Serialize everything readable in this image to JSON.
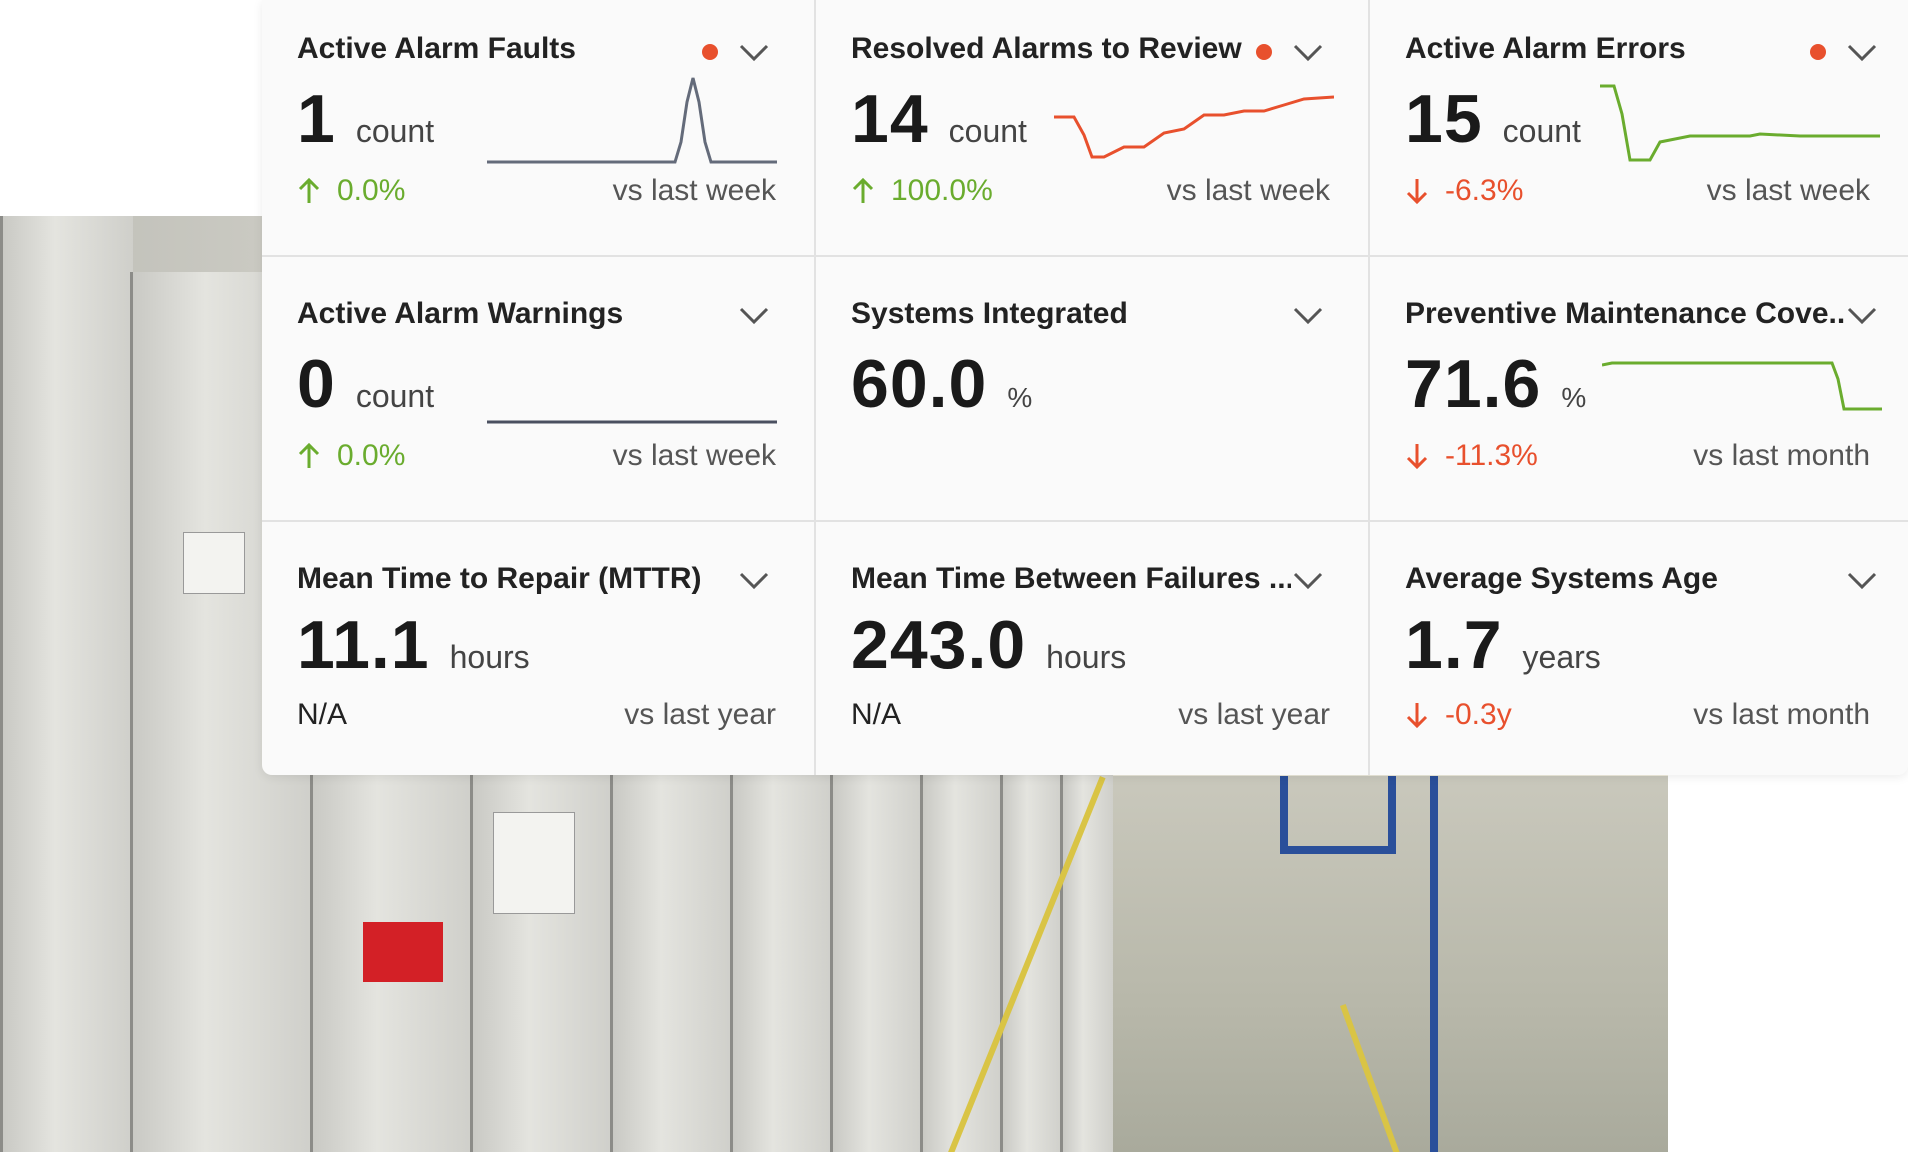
{
  "cards": [
    {
      "title": "Active Alarm Faults",
      "value": "1",
      "unit": "count",
      "change": "0.0%",
      "direction": "up",
      "comparison": "vs last week",
      "alert": true
    },
    {
      "title": "Resolved Alarms to Review",
      "value": "14",
      "unit": "count",
      "change": "100.0%",
      "direction": "up",
      "comparison": "vs last week",
      "alert": true
    },
    {
      "title": "Active Alarm Errors",
      "value": "15",
      "unit": "count",
      "change": "-6.3%",
      "direction": "down",
      "comparison": "vs last week",
      "alert": true
    },
    {
      "title": "Active Alarm Warnings",
      "value": "0",
      "unit": "count",
      "change": "0.0%",
      "direction": "up",
      "comparison": "vs last week",
      "alert": false
    },
    {
      "title": "Systems Integrated",
      "value": "60.0",
      "unit": "%",
      "alert": false
    },
    {
      "title": "Preventive Maintenance Cove...",
      "value": "71.6",
      "unit": "%",
      "change": "-11.3%",
      "direction": "down",
      "comparison": "vs last month",
      "alert": false
    },
    {
      "title": "Mean Time to Repair (MTTR)",
      "value": "11.1",
      "unit": "hours",
      "change": "N/A",
      "direction": "none",
      "comparison": "vs last year",
      "alert": false
    },
    {
      "title": "Mean Time Between Failures ...",
      "value": "243.0",
      "unit": "hours",
      "change": "N/A",
      "direction": "none",
      "comparison": "vs last year",
      "alert": false
    },
    {
      "title": "Average Systems Age",
      "value": "1.7",
      "unit": "years",
      "change": "-0.3y",
      "direction": "down",
      "comparison": "vs last month",
      "alert": false
    }
  ],
  "colors": {
    "alert": "#e8502d",
    "up": "#6aac2e",
    "down": "#e8502d",
    "spark_faults": "#646b7a",
    "spark_resolved": "#e8502d",
    "spark_errors": "#6aac2e",
    "spark_warnings": "#4a5060",
    "spark_pm": "#6aac2e"
  }
}
